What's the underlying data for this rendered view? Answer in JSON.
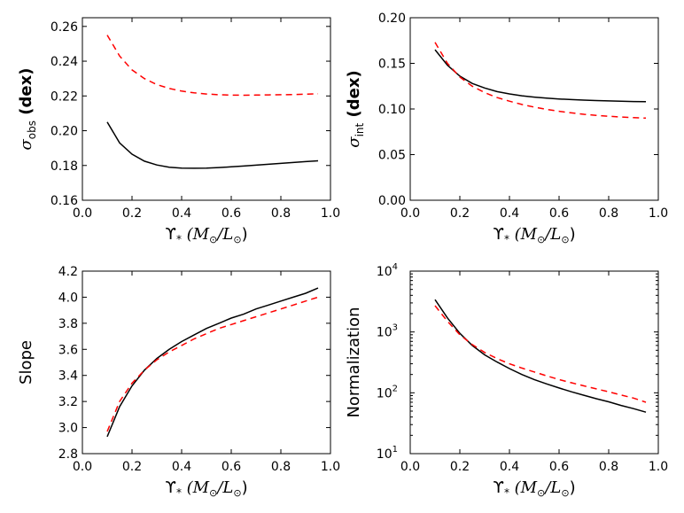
{
  "chart_data": [
    {
      "id": "sigma_obs",
      "type": "line",
      "xlabel": "ϒ* (M⊙/L⊙)",
      "ylabel": "σobs (dex)",
      "ylabel_parts": {
        "sym": "σ",
        "sub": "obs",
        "rest": "(dex)"
      },
      "xlim": [
        0.0,
        1.0
      ],
      "ylim": [
        0.16,
        0.265
      ],
      "yscale": "linear",
      "xticks": [
        "0.0",
        "0.2",
        "0.4",
        "0.6",
        "0.8",
        "1.0"
      ],
      "yticks": [
        "0.16",
        "0.18",
        "0.20",
        "0.22",
        "0.24",
        "0.26"
      ],
      "x": [
        0.1,
        0.15,
        0.2,
        0.25,
        0.3,
        0.35,
        0.4,
        0.45,
        0.5,
        0.55,
        0.6,
        0.65,
        0.7,
        0.75,
        0.8,
        0.85,
        0.9,
        0.95
      ],
      "series": [
        {
          "name": "solid",
          "color": "#000000",
          "dash": "",
          "values": [
            0.205,
            0.193,
            0.1865,
            0.1825,
            0.1803,
            0.179,
            0.1785,
            0.1784,
            0.1785,
            0.1788,
            0.1792,
            0.1797,
            0.1802,
            0.1807,
            0.1812,
            0.1817,
            0.1822,
            0.1827
          ]
        },
        {
          "name": "dashed",
          "color": "#ff0000",
          "dash": "7,5",
          "values": [
            0.255,
            0.243,
            0.235,
            0.23,
            0.2265,
            0.2243,
            0.2228,
            0.2218,
            0.2211,
            0.2207,
            0.2205,
            0.2204,
            0.2205,
            0.2206,
            0.2207,
            0.2208,
            0.221,
            0.2212
          ]
        }
      ]
    },
    {
      "id": "sigma_int",
      "type": "line",
      "xlabel": "ϒ* (M⊙/L⊙)",
      "ylabel": "σint (dex)",
      "ylabel_parts": {
        "sym": "σ",
        "sub": "int",
        "rest": "(dex)"
      },
      "xlim": [
        0.0,
        1.0
      ],
      "ylim": [
        0.0,
        0.2
      ],
      "yscale": "linear",
      "xticks": [
        "0.0",
        "0.2",
        "0.4",
        "0.6",
        "0.8",
        "1.0"
      ],
      "yticks": [
        "0.00",
        "0.05",
        "0.10",
        "0.15",
        "0.20"
      ],
      "x": [
        0.1,
        0.15,
        0.2,
        0.25,
        0.3,
        0.35,
        0.4,
        0.45,
        0.5,
        0.55,
        0.6,
        0.65,
        0.7,
        0.75,
        0.8,
        0.85,
        0.9,
        0.95
      ],
      "series": [
        {
          "name": "solid",
          "color": "#000000",
          "dash": "",
          "values": [
            0.165,
            0.148,
            0.136,
            0.128,
            0.123,
            0.119,
            0.1165,
            0.1145,
            0.113,
            0.1118,
            0.111,
            0.1103,
            0.1097,
            0.1092,
            0.1088,
            0.1085,
            0.1082,
            0.108
          ]
        },
        {
          "name": "dashed",
          "color": "#ff0000",
          "dash": "7,5",
          "values": [
            0.173,
            0.15,
            0.135,
            0.125,
            0.118,
            0.1125,
            0.1085,
            0.105,
            0.102,
            0.0995,
            0.0975,
            0.0957,
            0.0942,
            0.093,
            0.092,
            0.0912,
            0.0905,
            0.09
          ]
        }
      ]
    },
    {
      "id": "slope",
      "type": "line",
      "xlabel": "ϒ* (M⊙/L⊙)",
      "ylabel": "Slope",
      "xlim": [
        0.0,
        1.0
      ],
      "ylim": [
        2.8,
        4.2
      ],
      "yscale": "linear",
      "xticks": [
        "0.0",
        "0.2",
        "0.4",
        "0.6",
        "0.8",
        "1.0"
      ],
      "yticks": [
        "2.8",
        "3.0",
        "3.2",
        "3.4",
        "3.6",
        "3.8",
        "4.0",
        "4.2"
      ],
      "x": [
        0.1,
        0.15,
        0.2,
        0.25,
        0.3,
        0.35,
        0.4,
        0.45,
        0.5,
        0.55,
        0.6,
        0.65,
        0.7,
        0.75,
        0.8,
        0.85,
        0.9,
        0.95
      ],
      "series": [
        {
          "name": "solid",
          "color": "#000000",
          "dash": "",
          "values": [
            2.93,
            3.16,
            3.32,
            3.44,
            3.53,
            3.6,
            3.66,
            3.71,
            3.76,
            3.8,
            3.84,
            3.87,
            3.91,
            3.94,
            3.97,
            4.0,
            4.03,
            4.07
          ]
        },
        {
          "name": "dashed",
          "color": "#ff0000",
          "dash": "7,5",
          "values": [
            2.97,
            3.2,
            3.34,
            3.44,
            3.52,
            3.58,
            3.63,
            3.68,
            3.72,
            3.76,
            3.79,
            3.82,
            3.85,
            3.88,
            3.91,
            3.94,
            3.97,
            4.0
          ]
        }
      ]
    },
    {
      "id": "normalization",
      "type": "line",
      "xlabel": "ϒ* (M⊙/L⊙)",
      "ylabel": "Normalization",
      "xlim": [
        0.0,
        1.0
      ],
      "ylim": [
        10,
        10000
      ],
      "yscale": "log",
      "xticks": [
        "0.0",
        "0.2",
        "0.4",
        "0.6",
        "0.8",
        "1.0"
      ],
      "yticks": [
        {
          "base": "10",
          "exp": "1"
        },
        {
          "base": "10",
          "exp": "2"
        },
        {
          "base": "10",
          "exp": "3"
        },
        {
          "base": "10",
          "exp": "4"
        }
      ],
      "x": [
        0.1,
        0.15,
        0.2,
        0.25,
        0.3,
        0.35,
        0.4,
        0.45,
        0.5,
        0.55,
        0.6,
        0.65,
        0.7,
        0.75,
        0.8,
        0.85,
        0.9,
        0.95
      ],
      "series": [
        {
          "name": "solid",
          "color": "#000000",
          "dash": "",
          "values": [
            3400,
            1700,
            950,
            600,
            420,
            320,
            250,
            200,
            165,
            140,
            120,
            104,
            91,
            80,
            71,
            62,
            55,
            48
          ]
        },
        {
          "name": "dashed",
          "color": "#ff0000",
          "dash": "7,5",
          "values": [
            2700,
            1500,
            900,
            620,
            460,
            365,
            300,
            255,
            220,
            190,
            165,
            146,
            130,
            116,
            104,
            92,
            82,
            70
          ]
        }
      ]
    }
  ]
}
